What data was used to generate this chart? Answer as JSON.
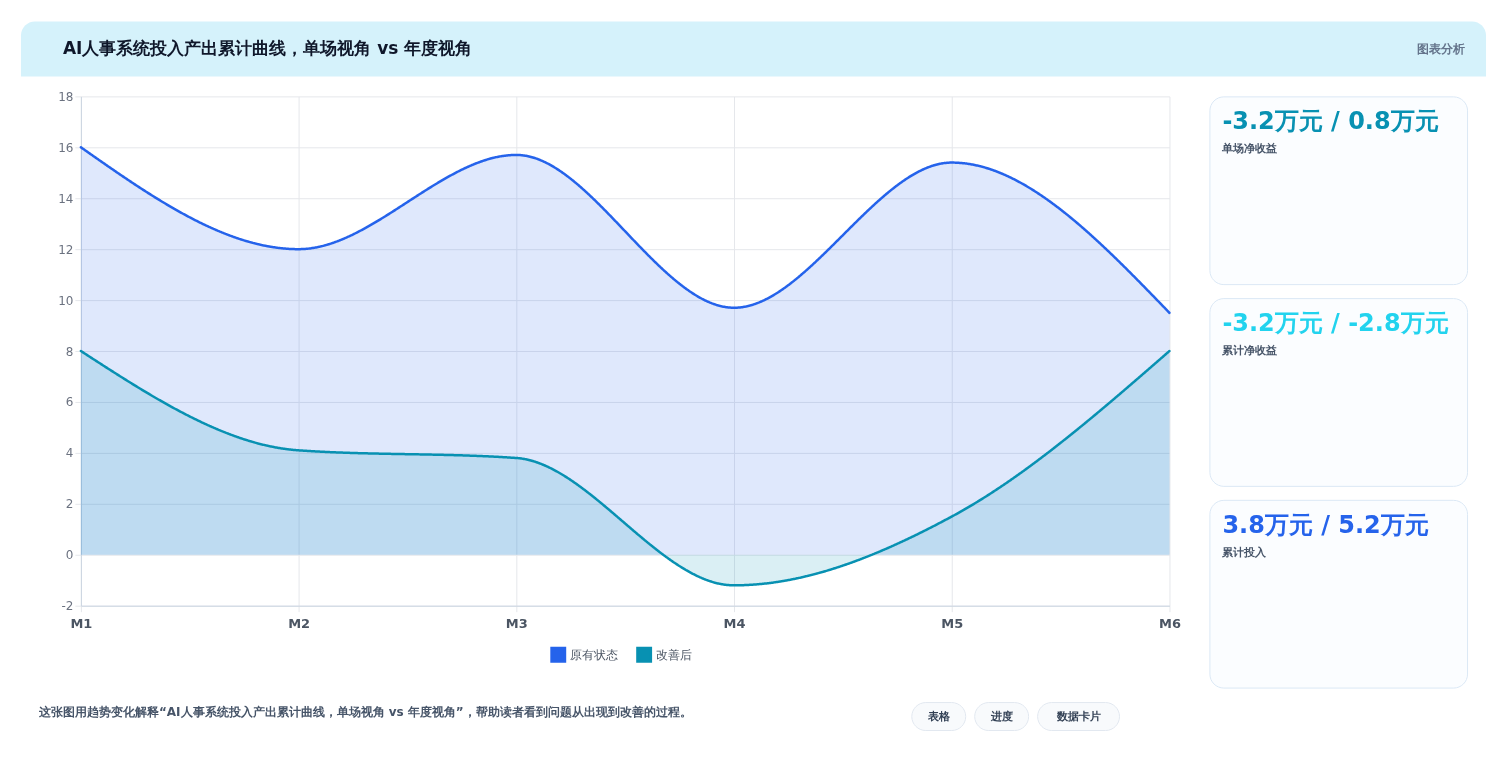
{
  "chart_data": [
    {
      "type": "area",
      "title": "AI人事系统投入产出累计曲线，单场视角 vs 年度视角",
      "categories": [
        "M1",
        "M2",
        "M3",
        "M4",
        "M5",
        "M6"
      ],
      "series": [
        {
          "name": "原有状态",
          "color": "#2563eb",
          "values": [
            16,
            12,
            15.7,
            9.7,
            15.4,
            9.5
          ]
        },
        {
          "name": "改善后",
          "color": "#0891b2",
          "values": [
            8,
            4.1,
            3.8,
            -1.2,
            1.5,
            8
          ]
        }
      ],
      "ylim": [
        -2,
        18
      ],
      "yticks": [
        -2,
        0,
        2,
        4,
        6,
        8,
        10,
        12,
        14,
        16,
        18
      ],
      "grid": true,
      "legend": "bottom",
      "annotations": [
        "图表分析",
        "这张图用趋势变化解释“AI人事系统投入产出累计曲线，单场视角 vs 年度视角”，帮助读者看到问题从出现到改善的过程。",
        "表格",
        "进度",
        "数据卡片"
      ]
    },
    {
      "type": "other",
      "title": "-3.2万元 / 0.8万元",
      "subtitle": "单场净收益",
      "color": "#0891b2"
    },
    {
      "type": "other",
      "title": "-3.2万元 / -2.8万元",
      "subtitle": "累计净收益",
      "color": "#22d3ee"
    },
    {
      "type": "other",
      "title": "3.8万元 / 5.2万元",
      "subtitle": "累计投入",
      "color": "#2563eb"
    }
  ]
}
